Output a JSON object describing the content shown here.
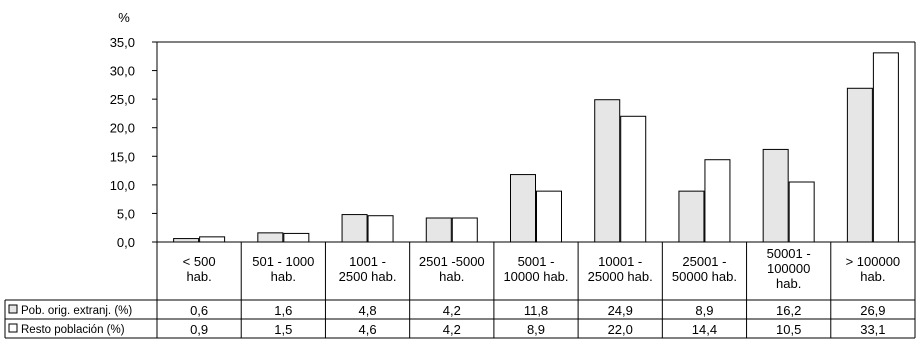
{
  "chart_data": {
    "type": "bar",
    "ylabel": "%",
    "ylim": [
      0,
      35
    ],
    "yticks": [
      "0,0",
      "5,0",
      "10,0",
      "15,0",
      "20,0",
      "25,0",
      "30,0",
      "35,0"
    ],
    "grid": false,
    "legend": "table-left",
    "categories": [
      [
        "< 500",
        "hab."
      ],
      [
        "501 - 1000",
        "hab."
      ],
      [
        "1001 -",
        "2500 hab."
      ],
      [
        "2501 -5000",
        "hab."
      ],
      [
        "5001 -",
        "10000 hab."
      ],
      [
        "10001 -",
        "25000 hab."
      ],
      [
        "25001 -",
        "50000 hab."
      ],
      [
        "50001 -",
        "100000",
        "hab."
      ],
      [
        "> 100000",
        "hab."
      ]
    ],
    "series": [
      {
        "name": "Pob. orig. extranj. (%)",
        "color": "#e6e6e6",
        "values": [
          0.6,
          1.6,
          4.8,
          4.2,
          11.8,
          24.9,
          8.9,
          16.2,
          26.9
        ],
        "labels": [
          "0,6",
          "1,6",
          "4,8",
          "4,2",
          "11,8",
          "24,9",
          "8,9",
          "16,2",
          "26,9"
        ]
      },
      {
        "name": "Resto población (%)",
        "color": "#ffffff",
        "values": [
          0.9,
          1.5,
          4.6,
          4.2,
          8.9,
          22.0,
          14.4,
          10.5,
          33.1
        ],
        "labels": [
          "0,9",
          "1,5",
          "4,6",
          "4,2",
          "8,9",
          "22,0",
          "14,4",
          "10,5",
          "33,1"
        ]
      }
    ]
  }
}
